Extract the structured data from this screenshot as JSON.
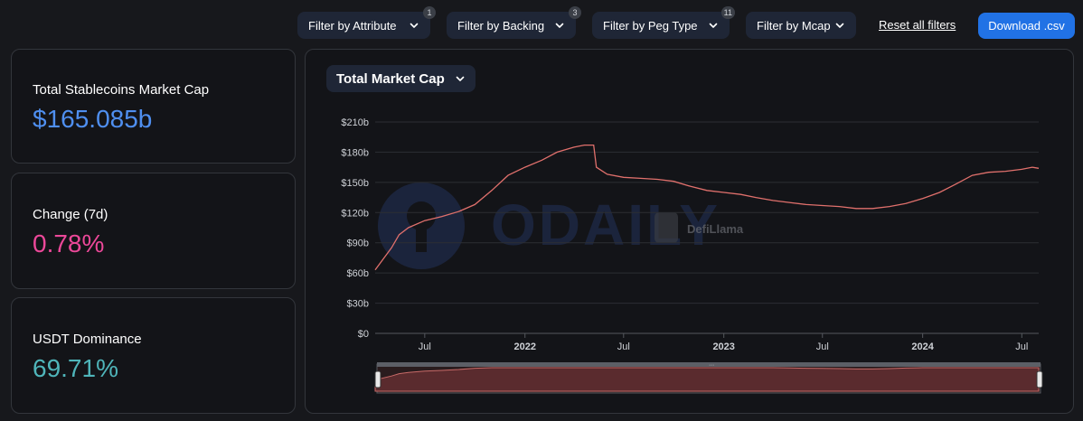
{
  "filters": [
    {
      "label": "Filter by Attribute",
      "badge": "1"
    },
    {
      "label": "Filter by Backing",
      "badge": "3"
    },
    {
      "label": "Filter by Peg Type",
      "badge": "11"
    },
    {
      "label": "Filter by Mcap",
      "badge": ""
    }
  ],
  "reset_label": "Reset all filters",
  "download_label": "Download .csv",
  "stats": [
    {
      "label": "Total Stablecoins Market Cap",
      "value": "$165.085b",
      "color": "#4f8ff0"
    },
    {
      "label": "Change (7d)",
      "value": "0.78%",
      "color": "#ec4899"
    },
    {
      "label": "USDT Dominance",
      "value": "69.71%",
      "color": "#4fb5ba"
    }
  ],
  "chart_selector": "Total Market Cap",
  "watermark": {
    "brand": "ODAILY",
    "defillama": "DefiLlama"
  },
  "colors": {
    "line": "#e0706c",
    "accent": "#2172e5"
  },
  "chart_data": {
    "type": "line",
    "title": "",
    "xlabel": "",
    "ylabel": "",
    "ylim": [
      0,
      210
    ],
    "y_ticks": [
      "$0",
      "$30b",
      "$60b",
      "$90b",
      "$120b",
      "$150b",
      "$180b",
      "$210b"
    ],
    "x_ticks": [
      "Jul",
      "2022",
      "Jul",
      "2023",
      "Jul",
      "2024",
      "Jul"
    ],
    "x_tick_bold": [
      false,
      true,
      false,
      true,
      false,
      true,
      false
    ],
    "x_tick_dates": [
      "2021-07-01",
      "2022-01-01",
      "2022-07-01",
      "2023-01-01",
      "2023-07-01",
      "2024-01-01",
      "2024-07-01"
    ],
    "x_range": [
      "2021-04-01",
      "2024-08-01"
    ],
    "grid": true,
    "series": [
      {
        "unit": "billion USD",
        "points": [
          [
            "2021-04-01",
            63
          ],
          [
            "2021-05-01",
            85
          ],
          [
            "2021-05-15",
            98
          ],
          [
            "2021-06-01",
            105
          ],
          [
            "2021-07-01",
            112
          ],
          [
            "2021-08-01",
            116
          ],
          [
            "2021-09-01",
            121
          ],
          [
            "2021-10-01",
            128
          ],
          [
            "2021-11-01",
            142
          ],
          [
            "2021-12-01",
            157
          ],
          [
            "2022-01-01",
            165
          ],
          [
            "2022-02-01",
            172
          ],
          [
            "2022-03-01",
            180
          ],
          [
            "2022-04-01",
            185
          ],
          [
            "2022-04-20",
            187
          ],
          [
            "2022-05-07",
            187
          ],
          [
            "2022-05-12",
            165
          ],
          [
            "2022-06-01",
            158
          ],
          [
            "2022-07-01",
            155
          ],
          [
            "2022-08-01",
            154
          ],
          [
            "2022-09-01",
            153
          ],
          [
            "2022-10-01",
            151
          ],
          [
            "2022-11-01",
            146
          ],
          [
            "2022-12-01",
            142
          ],
          [
            "2023-01-01",
            140
          ],
          [
            "2023-02-01",
            138
          ],
          [
            "2023-03-01",
            135
          ],
          [
            "2023-04-01",
            132
          ],
          [
            "2023-05-01",
            130
          ],
          [
            "2023-06-01",
            128
          ],
          [
            "2023-07-01",
            127
          ],
          [
            "2023-08-01",
            126
          ],
          [
            "2023-09-01",
            124
          ],
          [
            "2023-10-01",
            124
          ],
          [
            "2023-11-01",
            126
          ],
          [
            "2023-12-01",
            129
          ],
          [
            "2024-01-01",
            134
          ],
          [
            "2024-02-01",
            140
          ],
          [
            "2024-03-01",
            148
          ],
          [
            "2024-04-01",
            157
          ],
          [
            "2024-05-01",
            160
          ],
          [
            "2024-06-01",
            161
          ],
          [
            "2024-07-01",
            163
          ],
          [
            "2024-07-20",
            165
          ],
          [
            "2024-08-01",
            164
          ]
        ]
      }
    ]
  }
}
